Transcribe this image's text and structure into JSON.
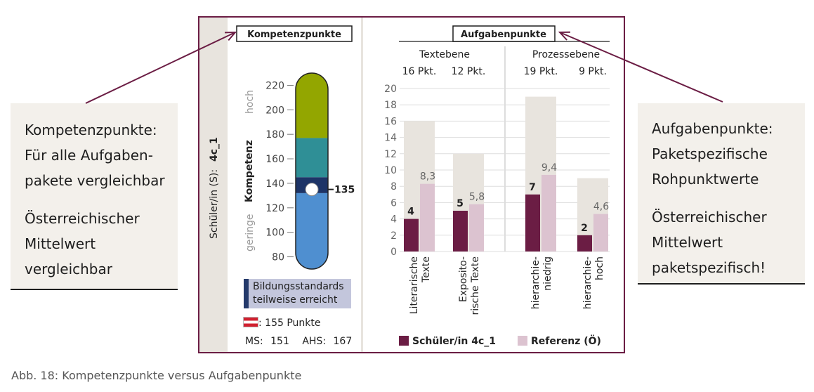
{
  "caption": "Abb. 18: Kompetenzpunkte versus Aufgabenpunkte",
  "left_note": {
    "lines1": [
      "Kompetenzpunkte:",
      "Für alle Aufgaben-",
      "pakete vergleichbar"
    ],
    "lines2": [
      "Österreichischer",
      "Mittelwert",
      "vergleichbar"
    ]
  },
  "right_note": {
    "lines1": [
      "Aufgabenpunkte:",
      "Paketspezifische",
      "Rohpunktwerte"
    ],
    "lines2": [
      "Österreichischer",
      "Mittelwert",
      "paketspezifisch!"
    ]
  },
  "student_label": "Schüler/in (S):",
  "student_id": "4c_1",
  "colors": {
    "student": "#6b1d44",
    "reference": "#dcc3d0",
    "max": "#e8e4de",
    "scale_high": "#93a600",
    "scale_mid": "#2f8f96",
    "scale_low": "#4f8fd0",
    "marker": "#1d3467",
    "frame": "#6b1d44"
  },
  "competence": {
    "header": "Kompetenzpunkte",
    "axis_label": "Kompetenz",
    "high_label": "hoch",
    "low_label": "geringe",
    "ticks": [
      80,
      100,
      120,
      140,
      160,
      180,
      200,
      220
    ],
    "scale_range": [
      70,
      230
    ],
    "zones": [
      {
        "from": 70,
        "to": 132,
        "color": "#4f8fd0"
      },
      {
        "from": 132,
        "to": 145,
        "color": "#1d3467"
      },
      {
        "from": 145,
        "to": 177,
        "color": "#2f8f96"
      },
      {
        "from": 177,
        "to": 230,
        "color": "#93a600"
      }
    ],
    "student_value": 135,
    "student_value_label": "135",
    "standard_line1": "Bildungsstandards",
    "standard_line2": "teilweise erreicht",
    "austria_label": ": 155 Punkte",
    "ms_label": "MS:",
    "ms_value": "151",
    "ahs_label": "AHS:",
    "ahs_value": "167"
  },
  "chart_data": {
    "type": "bar",
    "title": "Aufgabenpunkte",
    "ylim": [
      0,
      20
    ],
    "yticks": [
      0,
      2,
      4,
      6,
      8,
      10,
      12,
      14,
      16,
      18,
      20
    ],
    "groups": [
      {
        "name": "Textebene",
        "categories": [
          "Literarische Texte",
          "Expositorische Texte"
        ],
        "max_labels": [
          "16 Pkt.",
          "12 Pkt."
        ]
      },
      {
        "name": "Prozessebene",
        "categories": [
          "hierarchieniedrig",
          "hierarchiehoch"
        ],
        "max_labels": [
          "19 Pkt.",
          "9 Pkt."
        ]
      }
    ],
    "categories": [
      "Literarische Texte",
      "Expositorische Texte",
      "hierarchieniedrig",
      "hierarchiehoch"
    ],
    "category_lines": [
      [
        "Literarische",
        "Texte"
      ],
      [
        "Exposito-",
        "rische Texte"
      ],
      [
        "hierarchie-",
        "niedrig"
      ],
      [
        "hierarchie-",
        "hoch"
      ]
    ],
    "max_points": [
      16,
      12,
      19,
      9
    ],
    "series": [
      {
        "name": "Schüler/in 4c_1",
        "values": [
          4,
          5,
          7,
          2
        ],
        "labels": [
          "4",
          "5",
          "7",
          "2"
        ],
        "color": "#6b1d44"
      },
      {
        "name": "Referenz (Ö)",
        "values": [
          8.3,
          5.8,
          9.4,
          4.6
        ],
        "labels": [
          "8,3",
          "5,8",
          "9,4",
          "4,6"
        ],
        "color": "#dcc3d0"
      }
    ],
    "legend_placement": "bottom"
  }
}
